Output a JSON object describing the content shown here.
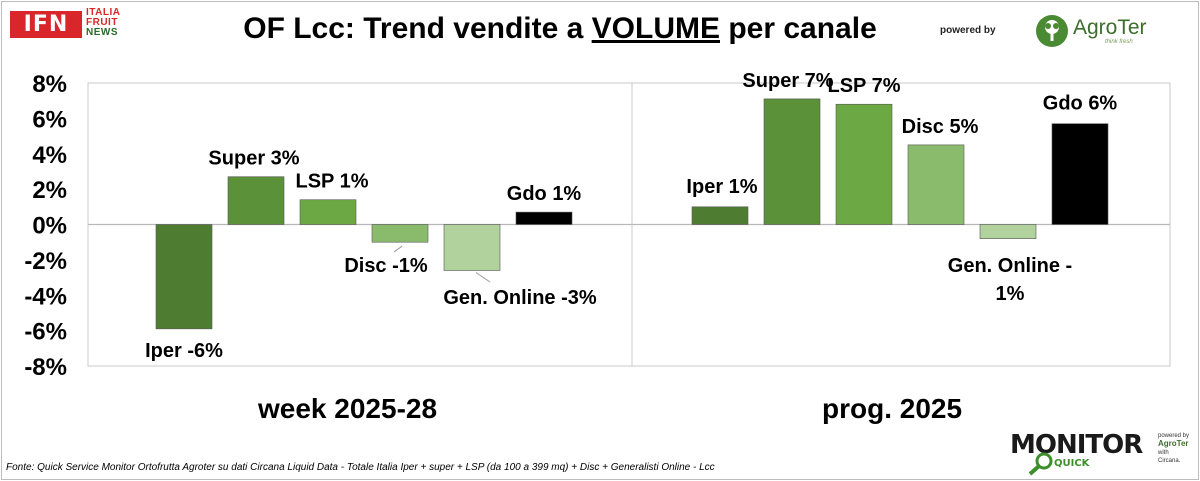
{
  "header": {
    "logo_main": "IFN",
    "logo_sub": [
      "ITALIA",
      "FRUIT",
      "NEWS"
    ],
    "title_prefix": "OF Lcc: Trend vendite a ",
    "title_emph": "VOLUME",
    "title_suffix": " per canale",
    "powered_by": "powered by",
    "brand_name": "AgroTer",
    "brand_tagline": "think fresh"
  },
  "chart_data": {
    "type": "bar",
    "ylim": [
      -8,
      8
    ],
    "yticks": [
      8,
      6,
      4,
      2,
      0,
      -2,
      -4,
      -6,
      -8
    ],
    "ytick_labels": [
      "8%",
      "6%",
      "4%",
      "2%",
      "0%",
      "-2%",
      "-4%",
      "-6%",
      "-8%"
    ],
    "grid": false,
    "panels": [
      {
        "label": "week 2025-28",
        "bars": [
          {
            "category": "Iper",
            "value": -5.9,
            "label": "Iper -6%",
            "color": "#4e7d32"
          },
          {
            "category": "Super",
            "value": 2.7,
            "label": "Super 3%",
            "color": "#5a9139"
          },
          {
            "category": "LSP",
            "value": 1.4,
            "label": "LSP 1%",
            "color": "#6ca944"
          },
          {
            "category": "Disc",
            "value": -1.0,
            "label": "Disc -1%",
            "color": "#8aba6c"
          },
          {
            "category": "Gen. Online",
            "value": -2.6,
            "label": "Gen. Online -3%",
            "color": "#b1d29c"
          },
          {
            "category": "Gdo",
            "value": 0.7,
            "label": "Gdo 1%",
            "color": "#000000"
          }
        ]
      },
      {
        "label": "prog. 2025",
        "bars": [
          {
            "category": "Iper",
            "value": 1.0,
            "label": "Iper 1%",
            "color": "#4e7d32"
          },
          {
            "category": "Super",
            "value": 7.1,
            "label": "Super 7%",
            "color": "#5a9139"
          },
          {
            "category": "LSP",
            "value": 6.8,
            "label": "LSP 7%",
            "color": "#6ca944"
          },
          {
            "category": "Disc",
            "value": 4.5,
            "label": "Disc 5%",
            "color": "#8aba6c"
          },
          {
            "category": "Gen. Online",
            "value": -0.8,
            "label": "Gen. Online -",
            "label2": "1%",
            "color": "#b1d29c"
          },
          {
            "category": "Gdo",
            "value": 5.7,
            "label": "Gdo 6%",
            "color": "#000000"
          }
        ]
      }
    ]
  },
  "footer": {
    "source": "Fonte: Quick Service Monitor Ortofrutta Agroter su dati Circana Liquid Data - Totale Italia Iper + super + LSP (da 100 a 399 mq) + Disc + Generalisti Online - Lcc",
    "monitor_logo": "MONITOR",
    "monitor_quick": "QUICK",
    "monitor_side": [
      "powered by",
      "AgroTer",
      "with",
      "Circana."
    ]
  }
}
